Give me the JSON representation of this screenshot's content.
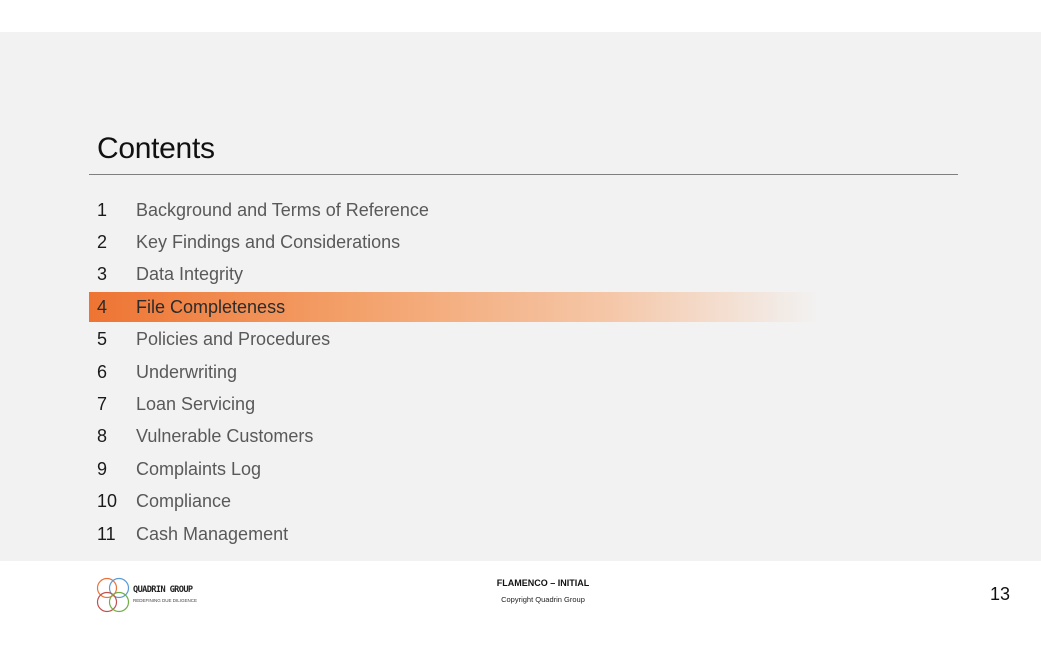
{
  "title": "Contents",
  "toc": [
    {
      "num": "1",
      "label": "Background and Terms of Reference"
    },
    {
      "num": "2",
      "label": "Key Findings and Considerations"
    },
    {
      "num": "3",
      "label": "Data Integrity"
    },
    {
      "num": "4",
      "label": "File Completeness"
    },
    {
      "num": "5",
      "label": "Policies and Procedures"
    },
    {
      "num": "6",
      "label": "Underwriting"
    },
    {
      "num": "7",
      "label": "Loan Servicing"
    },
    {
      "num": "8",
      "label": "Vulnerable Customers"
    },
    {
      "num": "9",
      "label": "Complaints Log"
    },
    {
      "num": "10",
      "label": "Compliance"
    },
    {
      "num": "11",
      "label": "Cash Management"
    }
  ],
  "active_item": "4",
  "footer": {
    "logo_name": "QUADRIN GROUP",
    "logo_tagline": "REDEFINING DUE DILIGENCE",
    "doc_title": "FLAMENCO – INITIAL",
    "copyright": "Copyright Quadrin Group",
    "page_number": "13"
  },
  "colors": {
    "highlight": "#ee7433",
    "panel": "#f2f2f2"
  }
}
